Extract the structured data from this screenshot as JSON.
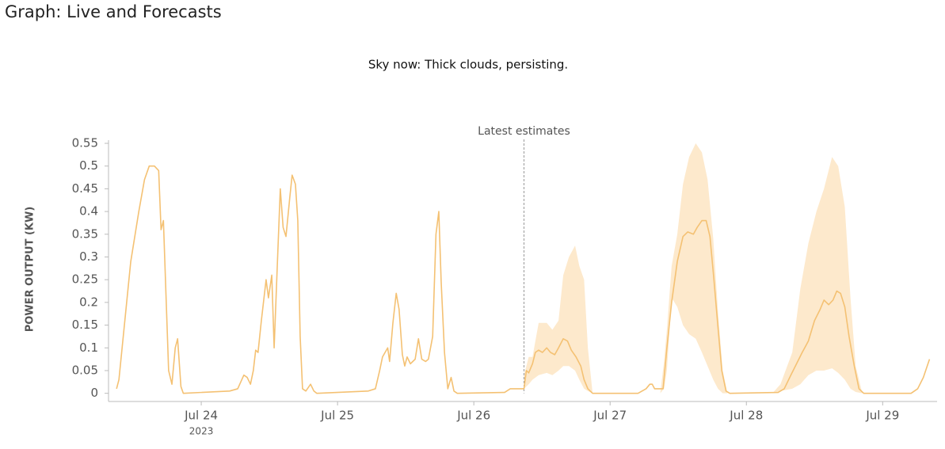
{
  "chart_data": {
    "type": "line",
    "title": "Graph: Live and Forecasts",
    "subtitle": "Sky now: Thick clouds, persisting.",
    "y_label": "POWER OUTPUT (KW)",
    "annotation": {
      "x": "2023-07-26T08:50",
      "text": "Latest estimates"
    },
    "color": "#f4c173",
    "band_color": "#fde9cc",
    "xlim": [
      "2023-07-23T07:40",
      "2023-07-29T09:35"
    ],
    "xticks": [
      {
        "value": "2023-07-24T00:00",
        "label": "Jul 24",
        "sublabel": "2023"
      },
      {
        "value": "2023-07-25T00:00",
        "label": "Jul 25"
      },
      {
        "value": "2023-07-26T00:00",
        "label": "Jul 26"
      },
      {
        "value": "2023-07-27T00:00",
        "label": "Jul 27"
      },
      {
        "value": "2023-07-28T00:00",
        "label": "Jul 28"
      },
      {
        "value": "2023-07-29T00:00",
        "label": "Jul 29"
      }
    ],
    "ylim": [
      -0.018,
      0.55
    ],
    "yticks": [
      0,
      0.05,
      0.1,
      0.15,
      0.2,
      0.25,
      0.3,
      0.35,
      0.4,
      0.45,
      0.5,
      0.55
    ],
    "x": [
      "2023-07-23T09:05",
      "2023-07-23T09:30",
      "2023-07-23T11:35",
      "2023-07-23T13:00",
      "2023-07-23T14:00",
      "2023-07-23T14:50",
      "2023-07-23T15:45",
      "2023-07-23T16:30",
      "2023-07-23T16:55",
      "2023-07-23T17:20",
      "2023-07-23T18:15",
      "2023-07-23T18:50",
      "2023-07-23T19:25",
      "2023-07-23T19:50",
      "2023-07-23T20:25",
      "2023-07-23T20:50",
      "2023-07-24T05:00",
      "2023-07-24T06:25",
      "2023-07-24T07:30",
      "2023-07-24T08:05",
      "2023-07-24T08:40",
      "2023-07-24T09:10",
      "2023-07-24T09:35",
      "2023-07-24T10:00",
      "2023-07-24T10:35",
      "2023-07-24T11:25",
      "2023-07-24T11:50",
      "2023-07-24T12:25",
      "2023-07-24T12:50",
      "2023-07-24T13:25",
      "2023-07-24T13:55",
      "2023-07-24T14:25",
      "2023-07-24T14:55",
      "2023-07-24T15:35",
      "2023-07-24T16:00",
      "2023-07-24T16:35",
      "2023-07-24T17:00",
      "2023-07-24T17:25",
      "2023-07-24T17:50",
      "2023-07-24T18:25",
      "2023-07-24T19:15",
      "2023-07-24T19:50",
      "2023-07-24T20:20",
      "2023-07-25T05:25",
      "2023-07-25T06:40",
      "2023-07-25T07:25",
      "2023-07-25T07:55",
      "2023-07-25T08:50",
      "2023-07-25T09:10",
      "2023-07-25T09:45",
      "2023-07-25T10:20",
      "2023-07-25T10:50",
      "2023-07-25T11:25",
      "2023-07-25T11:50",
      "2023-07-25T12:15",
      "2023-07-25T12:50",
      "2023-07-25T13:40",
      "2023-07-25T14:15",
      "2023-07-25T14:50",
      "2023-07-25T15:30",
      "2023-07-25T16:00",
      "2023-07-25T16:45",
      "2023-07-25T17:20",
      "2023-07-25T17:50",
      "2023-07-25T18:15",
      "2023-07-25T18:50",
      "2023-07-25T19:25",
      "2023-07-25T20:00",
      "2023-07-25T20:30",
      "2023-07-25T21:05",
      "2023-07-26T05:25",
      "2023-07-26T06:25",
      "2023-07-26T08:00",
      "2023-07-26T08:50",
      "2023-07-26T09:15",
      "2023-07-26T09:40",
      "2023-07-26T10:20",
      "2023-07-26T10:50",
      "2023-07-26T11:25",
      "2023-07-26T12:05",
      "2023-07-26T12:50",
      "2023-07-26T13:30",
      "2023-07-26T14:15",
      "2023-07-26T14:55",
      "2023-07-26T15:45",
      "2023-07-26T16:30",
      "2023-07-26T17:10",
      "2023-07-26T18:00",
      "2023-07-26T18:50",
      "2023-07-26T19:25",
      "2023-07-26T20:05",
      "2023-07-26T20:55",
      "2023-07-27T04:55",
      "2023-07-27T06:20",
      "2023-07-27T07:00",
      "2023-07-27T07:25",
      "2023-07-27T07:50",
      "2023-07-27T08:50",
      "2023-07-27T09:20",
      "2023-07-27T10:00",
      "2023-07-27T10:50",
      "2023-07-27T11:50",
      "2023-07-27T12:50",
      "2023-07-27T13:40",
      "2023-07-27T14:40",
      "2023-07-27T15:20",
      "2023-07-27T16:10",
      "2023-07-27T16:55",
      "2023-07-27T17:35",
      "2023-07-27T18:15",
      "2023-07-27T19:00",
      "2023-07-27T19:40",
      "2023-07-27T20:25",
      "2023-07-27T21:05",
      "2023-07-28T05:35",
      "2023-07-28T06:40",
      "2023-07-28T07:50",
      "2023-07-28T08:50",
      "2023-07-28T09:50",
      "2023-07-28T10:55",
      "2023-07-28T12:00",
      "2023-07-28T13:00",
      "2023-07-28T13:40",
      "2023-07-28T14:30",
      "2023-07-28T15:15",
      "2023-07-28T15:55",
      "2023-07-28T16:35",
      "2023-07-28T17:20",
      "2023-07-28T18:05",
      "2023-07-28T19:00",
      "2023-07-28T19:50",
      "2023-07-28T20:40",
      "2023-07-29T05:00",
      "2023-07-29T06:10",
      "2023-07-29T07:10",
      "2023-07-29T08:15"
    ],
    "values": [
      0.01,
      0.03,
      0.29,
      0.4,
      0.47,
      0.5,
      0.5,
      0.49,
      0.36,
      0.38,
      0.05,
      0.02,
      0.1,
      0.12,
      0.015,
      0,
      0.005,
      0.01,
      0.04,
      0.035,
      0.02,
      0.05,
      0.095,
      0.09,
      0.16,
      0.25,
      0.21,
      0.26,
      0.1,
      0.29,
      0.45,
      0.365,
      0.345,
      0.43,
      0.48,
      0.46,
      0.38,
      0.125,
      0.01,
      0.005,
      0.02,
      0.005,
      0,
      0.005,
      0.01,
      0.05,
      0.08,
      0.1,
      0.07,
      0.155,
      0.22,
      0.185,
      0.085,
      0.06,
      0.08,
      0.065,
      0.075,
      0.12,
      0.075,
      0.07,
      0.075,
      0.125,
      0.35,
      0.4,
      0.245,
      0.09,
      0.01,
      0.035,
      0.005,
      0,
      0.002,
      0.01,
      0.01,
      0.01,
      0.05,
      0.045,
      0.065,
      0.09,
      0.095,
      0.09,
      0.1,
      0.09,
      0.085,
      0.1,
      0.12,
      0.115,
      0.095,
      0.08,
      0.06,
      0.03,
      0.01,
      0,
      0,
      0.01,
      0.02,
      0.02,
      0.01,
      0.01,
      0.01,
      0.1,
      0.2,
      0.29,
      0.345,
      0.355,
      0.35,
      0.365,
      0.38,
      0.38,
      0.345,
      0.255,
      0.145,
      0.05,
      0.005,
      0,
      0.002,
      0.01,
      0.04,
      0.065,
      0.09,
      0.115,
      0.16,
      0.185,
      0.205,
      0.195,
      0.205,
      0.225,
      0.22,
      0.19,
      0.125,
      0.06,
      0.01,
      0,
      0,
      0.01,
      0.035,
      0.075
    ],
    "band": {
      "x": [
        "2023-07-26T08:50",
        "2023-07-26T09:40",
        "2023-07-26T10:20",
        "2023-07-26T11:25",
        "2023-07-26T12:50",
        "2023-07-26T13:50",
        "2023-07-26T14:55",
        "2023-07-26T15:45",
        "2023-07-26T16:45",
        "2023-07-26T17:50",
        "2023-07-26T18:35",
        "2023-07-26T19:25",
        "2023-07-26T20:05",
        "2023-07-26T20:55",
        "2023-07-27T08:50",
        "2023-07-27T09:30",
        "2023-07-27T10:00",
        "2023-07-27T10:50",
        "2023-07-27T11:50",
        "2023-07-27T12:50",
        "2023-07-27T13:55",
        "2023-07-27T15:05",
        "2023-07-27T16:10",
        "2023-07-27T17:10",
        "2023-07-27T18:10",
        "2023-07-27T19:00",
        "2023-07-27T19:50",
        "2023-07-27T20:40",
        "2023-07-28T04:35",
        "2023-07-28T06:00",
        "2023-07-28T08:05",
        "2023-07-28T09:30",
        "2023-07-28T10:55",
        "2023-07-28T12:20",
        "2023-07-28T13:40",
        "2023-07-28T15:05",
        "2023-07-28T16:10",
        "2023-07-28T17:20",
        "2023-07-28T18:20",
        "2023-07-28T19:15",
        "2023-07-28T20:25"
      ],
      "lower": [
        0.01,
        0.02,
        0.03,
        0.04,
        0.045,
        0.04,
        0.05,
        0.06,
        0.06,
        0.05,
        0.03,
        0.01,
        0.005,
        0,
        0,
        0.01,
        0.05,
        0.21,
        0.19,
        0.15,
        0.13,
        0.12,
        0.09,
        0.06,
        0.03,
        0.01,
        0,
        0,
        0,
        0.005,
        0.01,
        0.02,
        0.04,
        0.05,
        0.05,
        0.055,
        0.045,
        0.03,
        0.01,
        0.003,
        0
      ],
      "upper": [
        0.04,
        0.08,
        0.08,
        0.155,
        0.155,
        0.14,
        0.16,
        0.26,
        0.3,
        0.325,
        0.28,
        0.25,
        0.1,
        0,
        0,
        0.07,
        0.14,
        0.28,
        0.35,
        0.46,
        0.52,
        0.55,
        0.53,
        0.47,
        0.34,
        0.18,
        0.05,
        0,
        0,
        0.02,
        0.09,
        0.23,
        0.33,
        0.4,
        0.45,
        0.52,
        0.5,
        0.41,
        0.21,
        0.06,
        0
      ]
    }
  }
}
